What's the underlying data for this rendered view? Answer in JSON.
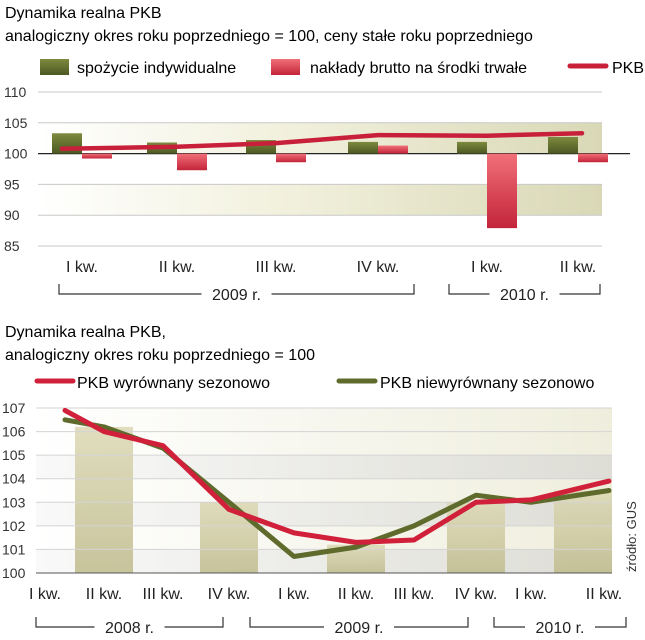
{
  "chart_data": [
    {
      "type": "bar",
      "title": "Dynamika realna PKB",
      "subtitle": "analogiczny okres roku poprzedniego = 100, ceny stałe roku poprzedniego",
      "ylim": [
        85,
        110
      ],
      "ytick_values": [
        110,
        105,
        100,
        95,
        90,
        85
      ],
      "ytick_labels": [
        "110",
        "105",
        "100",
        "95",
        "90",
        "85"
      ],
      "baseline": 100,
      "categories": [
        "I kw.",
        "II kw.",
        "III kw.",
        "IV kw.",
        "I kw.",
        "II kw."
      ],
      "year_groups": [
        {
          "label": "2009 r.",
          "from": 0,
          "to": 3
        },
        {
          "label": "2010 r.",
          "from": 4,
          "to": 5
        }
      ],
      "series": [
        {
          "name": "spożycie indywidualne",
          "kind": "bar",
          "color": "#5e6b2c",
          "values": [
            103.3,
            101.8,
            102.2,
            101.9,
            101.9,
            102.7
          ]
        },
        {
          "name": "nakłady brutto na środki trwałe",
          "kind": "bar",
          "color": "#d33a46",
          "values": [
            99.2,
            97.3,
            98.6,
            101.3,
            87.9,
            98.6
          ]
        },
        {
          "name": "PKB",
          "kind": "line",
          "color": "#c8203a",
          "values": [
            100.8,
            101.1,
            101.7,
            103.0,
            102.9,
            103.3
          ]
        }
      ]
    },
    {
      "type": "line",
      "title": "Dynamika realna PKB,",
      "subtitle": "analogiczny okres roku poprzedniego = 100",
      "ylim": [
        100,
        107
      ],
      "ytick_values": [
        107,
        106,
        105,
        104,
        103,
        102,
        101,
        100
      ],
      "ytick_labels": [
        "107",
        "106",
        "105",
        "104",
        "103",
        "102",
        "101",
        "100"
      ],
      "categories": [
        "I kw.",
        "II kw.",
        "III kw.",
        "IV kw.",
        "I kw.",
        "II kw.",
        "III kw.",
        "IV kw.",
        "I kw.",
        "II kw."
      ],
      "year_groups": [
        {
          "label": "2008 r.",
          "from": 0,
          "to": 3
        },
        {
          "label": "2009 r.",
          "from": 4,
          "to": 7
        },
        {
          "label": "2010 r.",
          "from": 8,
          "to": 9
        }
      ],
      "series": [
        {
          "name": "PKB wyrównany sezonowo",
          "color": "#d0203a",
          "values": [
            106.9,
            106.0,
            105.4,
            102.7,
            101.7,
            101.3,
            101.4,
            103.0,
            103.1,
            103.9
          ]
        },
        {
          "name": "PKB niewyrównany sezonowo",
          "color": "#5e6b2c",
          "values": [
            106.5,
            106.2,
            105.3,
            103.0,
            100.7,
            101.1,
            102.0,
            103.3,
            103.0,
            103.5
          ]
        }
      ],
      "source": "źródło: GUS"
    }
  ]
}
